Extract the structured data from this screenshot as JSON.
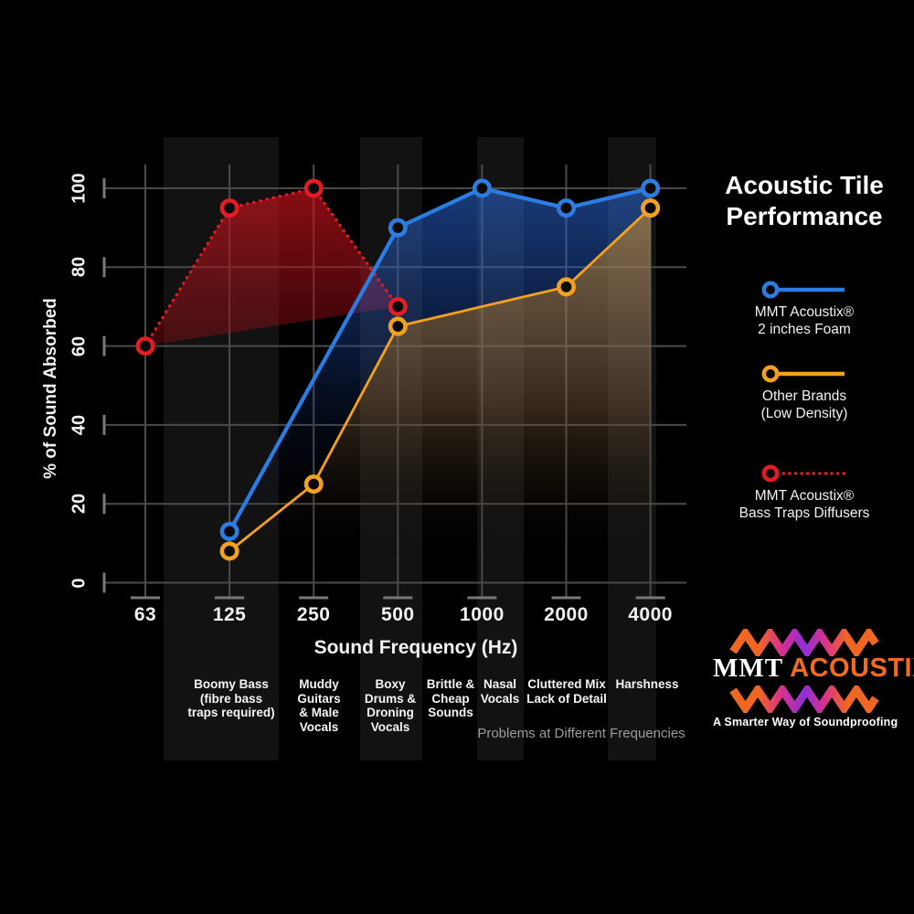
{
  "title": {
    "line1": "Acoustic Tile",
    "line2": "Performance"
  },
  "chart_data": {
    "type": "line",
    "title": "Acoustic Tile Performance",
    "xlabel": "Sound Frequency (Hz)",
    "ylabel": "% of Sound Absorbed",
    "x_categories": [
      "63",
      "125",
      "250",
      "500",
      "1000",
      "2000",
      "4000"
    ],
    "yticks": [
      0,
      20,
      40,
      60,
      80,
      100
    ],
    "ylim": [
      0,
      100
    ],
    "grid": true,
    "legend_position": "right",
    "series": [
      {
        "name": "MMT Acoustix® 2 inches Foam",
        "color": "#2b7de2",
        "style": "solid",
        "points": [
          [
            "125",
            13
          ],
          [
            "500",
            90
          ],
          [
            "1000",
            100
          ],
          [
            "2000",
            95
          ],
          [
            "4000",
            100
          ]
        ]
      },
      {
        "name": "Other Brands (Low Density)",
        "color": "#f3a11f",
        "style": "solid",
        "points": [
          [
            "125",
            8
          ],
          [
            "250",
            25
          ],
          [
            "500",
            65
          ],
          [
            "2000",
            75
          ],
          [
            "4000",
            95
          ]
        ]
      },
      {
        "name": "MMT Acoustix® Bass Traps Diffusers",
        "color": "#e51c22",
        "style": "dotted",
        "points": [
          [
            "63",
            60
          ],
          [
            "125",
            95
          ],
          [
            "250",
            100
          ],
          [
            "500",
            70
          ]
        ]
      }
    ],
    "problem_labels": [
      {
        "lines": [
          "Boomy Bass",
          "(fibre bass",
          "traps required)"
        ]
      },
      {
        "lines": [
          "Muddy",
          "Guitars",
          "& Male",
          "Vocals"
        ]
      },
      {
        "lines": [
          "Boxy",
          "Drums &",
          "Droning",
          "Vocals"
        ]
      },
      {
        "lines": [
          "Brittle &",
          "Cheap",
          "Sounds"
        ]
      },
      {
        "lines": [
          "Nasal",
          "Vocals"
        ]
      },
      {
        "lines": [
          "Cluttered Mix",
          "Lack of Detail"
        ]
      },
      {
        "lines": [
          "Harshness"
        ]
      }
    ],
    "caption": "Problems at Different Frequencies"
  },
  "legend": {
    "items": [
      {
        "line1": "MMT Acoustix®",
        "line2": "2 inches Foam"
      },
      {
        "line1": "Other Brands",
        "line2": "(Low Density)"
      },
      {
        "line1": "MMT Acoustix®",
        "line2": "Bass Traps Diffusers"
      }
    ]
  },
  "branding": {
    "name_left": "MMT",
    "name_right": "ACOUSTIX",
    "registered": "®",
    "tagline": "A Smarter Way of Soundproofing",
    "orange": "#f26b21",
    "magenta": "#d9308f",
    "purple": "#8e2fd6"
  }
}
